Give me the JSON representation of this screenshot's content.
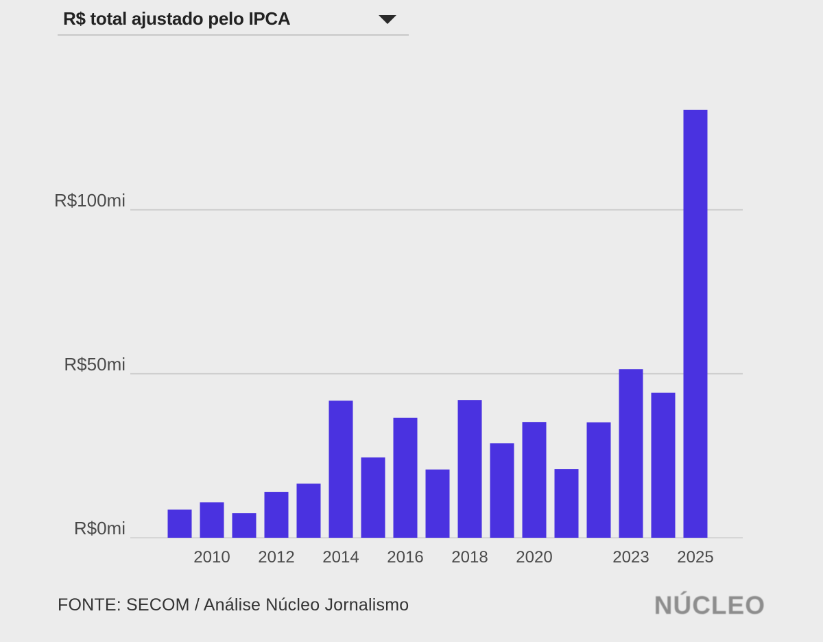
{
  "selector": {
    "label": "R$ total ajustado pelo IPCA",
    "icon": "caret-down-icon"
  },
  "chart_data": {
    "type": "bar",
    "title": "R$ total ajustado pelo IPCA",
    "xlabel": "",
    "ylabel": "",
    "categories": [
      "2009",
      "2010",
      "2011",
      "2012",
      "2013",
      "2014",
      "2015",
      "2016",
      "2017",
      "2018",
      "2019",
      "2020",
      "2021",
      "2022",
      "2023",
      "2024",
      "2025"
    ],
    "values": [
      8.6,
      10.8,
      7.5,
      14.0,
      16.5,
      41.8,
      24.5,
      36.6,
      20.8,
      42.0,
      28.8,
      35.3,
      20.9,
      35.2,
      51.4,
      44.2,
      130.5
    ],
    "x_tick_labels": [
      "",
      "2010",
      "",
      "2012",
      "",
      "2014",
      "",
      "2016",
      "",
      "2018",
      "",
      "2020",
      "",
      "",
      "2023",
      "",
      "2025"
    ],
    "y_ticks": [
      0,
      50,
      100
    ],
    "y_tick_labels": [
      "R$0mi",
      "R$50mi",
      "R$100mi"
    ],
    "ylim": [
      0,
      130.5
    ],
    "grid": true,
    "bar_color": "#4a32e0",
    "grid_color": "#cfcfcf"
  },
  "footer": {
    "source": "FONTE: SECOM / Análise Núcleo Jornalismo",
    "brand": "NÚCLEO"
  }
}
